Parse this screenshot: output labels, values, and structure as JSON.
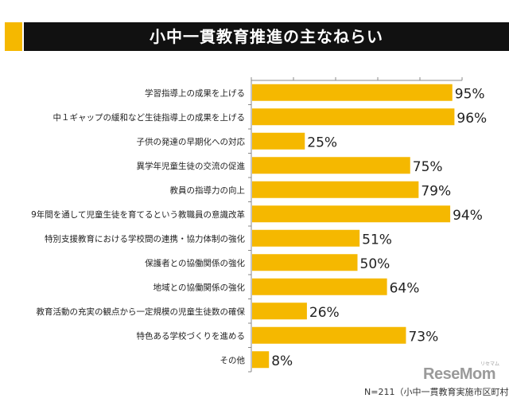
{
  "chart_data": {
    "type": "bar",
    "orientation": "horizontal",
    "title": "小中一貫教育推進の主なねらい",
    "categories": [
      "学習指導上の成果を上げる",
      "中１ギャップの緩和など生徒指導上の成果を上げる",
      "子供の発達の早期化への対応",
      "異学年児童生徒の交流の促進",
      "教員の指導力の向上",
      "9年間を通して児童生徒を育てるという教職員の意識改革",
      "特別支援教育における学校間の連携・協力体制の強化",
      "保護者との協働関係の強化",
      "地域との協働関係の強化",
      "教育活動の充実の観点から一定規模の児童生徒数の確保",
      "特色ある学校づくりを進める",
      "その他"
    ],
    "values": [
      95,
      96,
      25,
      75,
      79,
      94,
      51,
      50,
      64,
      26,
      73,
      8
    ],
    "data_labels": [
      "95%",
      "96%",
      "25%",
      "75%",
      "79%",
      "94%",
      "51%",
      "50%",
      "64%",
      "26%",
      "73%",
      "8%"
    ],
    "xlim": [
      0,
      100
    ],
    "xlabel": "",
    "ylabel": "",
    "bar_color": "#F5B800"
  },
  "footnote": "N=211（小中一貫教育実施市区町村）",
  "logo": {
    "text": "ReseMom",
    "kana": "リセマム"
  },
  "colors": {
    "accent": "#F5B800",
    "title_band": "#111111",
    "axis": "#888888"
  }
}
